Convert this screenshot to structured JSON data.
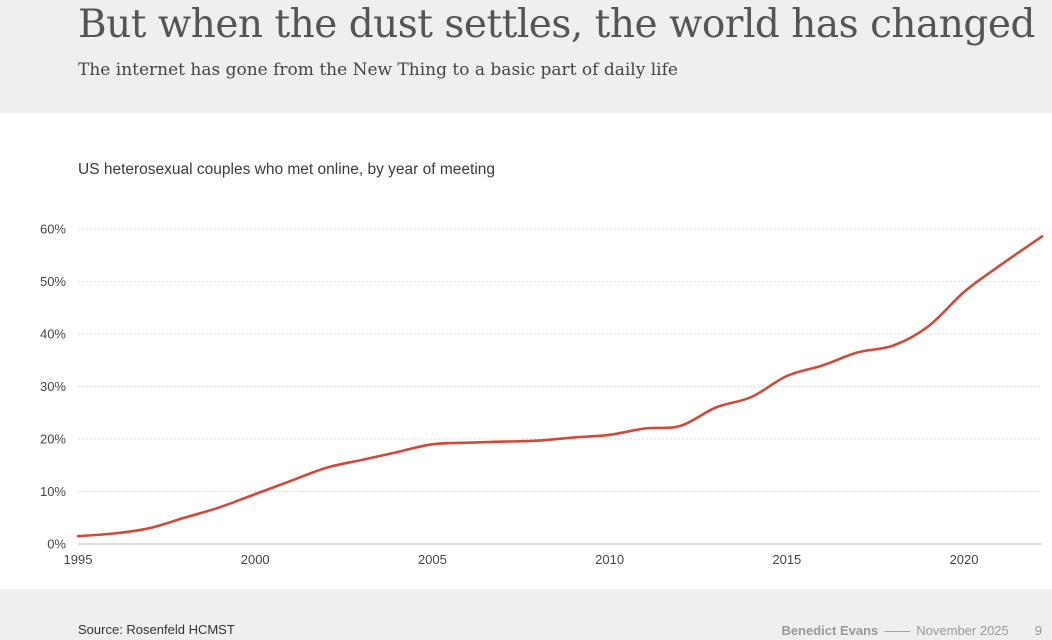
{
  "header": {
    "title": "But when the dust settles, the world has changed",
    "subtitle": "The internet has gone from the New Thing to a basic part of daily life"
  },
  "chart_data": {
    "type": "line",
    "title": "US heterosexual couples who met online, by year of meeting",
    "xlabel": "",
    "ylabel": "",
    "xlim": [
      1995,
      2022.2
    ],
    "ylim": [
      0,
      60
    ],
    "xticks": [
      1995,
      2000,
      2005,
      2010,
      2015,
      2020
    ],
    "xtick_labels": [
      "1995",
      "2000",
      "2005",
      "2010",
      "2015",
      "2020"
    ],
    "yticks": [
      0,
      10,
      20,
      30,
      40,
      50,
      60
    ],
    "ytick_labels": [
      "0%",
      "10%",
      "20%",
      "30%",
      "40%",
      "50%",
      "60%"
    ],
    "grid": "horizontal dotted",
    "line_color": "#d04a3a",
    "series": [
      {
        "name": "Met online",
        "x": [
          1995,
          1996,
          1997,
          1998,
          1999,
          2000,
          2001,
          2002,
          2003,
          2004,
          2005,
          2006,
          2007,
          2008,
          2009,
          2010,
          2011,
          2012,
          2013,
          2014,
          2015,
          2016,
          2017,
          2018,
          2019,
          2020,
          2021,
          2022.2
        ],
        "values": [
          1.5,
          2.0,
          3.0,
          5.0,
          7.0,
          9.5,
          12.0,
          14.5,
          16.0,
          17.5,
          19.0,
          19.3,
          19.5,
          19.7,
          20.3,
          20.8,
          22.0,
          22.5,
          26.0,
          28.0,
          32.0,
          34.0,
          36.5,
          37.8,
          41.5,
          48.0,
          53.0,
          58.6
        ]
      }
    ]
  },
  "footer": {
    "source": "Source: Rosenfeld HCMST",
    "author": "Benedict Evans",
    "separator": "——",
    "date": "November 2025",
    "page": "9"
  }
}
